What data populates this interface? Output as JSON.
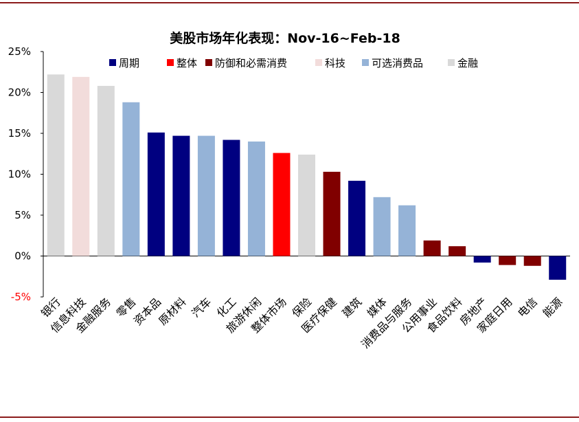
{
  "chart_data": {
    "type": "bar",
    "title": "美股市场年化表现：Nov-16~Feb-18",
    "ylim": [
      -5,
      25
    ],
    "yticks": [
      {
        "value": 25,
        "label": "25%"
      },
      {
        "value": 20,
        "label": "20%"
      },
      {
        "value": 15,
        "label": "15%"
      },
      {
        "value": 10,
        "label": "10%"
      },
      {
        "value": 5,
        "label": "5%"
      },
      {
        "value": 0,
        "label": "0%"
      },
      {
        "value": -5,
        "label": "-5%"
      }
    ],
    "legend_position": "top",
    "groups": [
      {
        "name": "周期",
        "color": "#000080"
      },
      {
        "name": "整体",
        "color": "#ff0000"
      },
      {
        "name": "防御和必需消费",
        "color": "#800000"
      },
      {
        "name": "科技",
        "color": "#f2dcdb"
      },
      {
        "name": "可选消费品",
        "color": "#95b3d7"
      },
      {
        "name": "金融",
        "color": "#d9d9d9"
      }
    ],
    "categories": [
      "银行",
      "信息科技",
      "金融服务",
      "零售",
      "资本品",
      "原材料",
      "汽车",
      "化工",
      "旅游休闲",
      "整体市场",
      "保险",
      "医疗保健",
      "建筑",
      "媒体",
      "消费品与服务",
      "公用事业",
      "食品饮料",
      "房地产",
      "家庭日用",
      "电信",
      "能源"
    ],
    "values": [
      22.2,
      21.9,
      20.8,
      18.8,
      15.1,
      14.7,
      14.7,
      14.2,
      14.0,
      12.6,
      12.4,
      10.3,
      9.2,
      7.2,
      6.2,
      1.9,
      1.2,
      -0.8,
      -1.1,
      -1.2,
      -2.9
    ],
    "bar_groups": [
      "金融",
      "科技",
      "金融",
      "可选消费品",
      "周期",
      "周期",
      "可选消费品",
      "周期",
      "可选消费品",
      "整体",
      "金融",
      "防御和必需消费",
      "周期",
      "可选消费品",
      "可选消费品",
      "防御和必需消费",
      "防御和必需消费",
      "周期",
      "防御和必需消费",
      "防御和必需消费",
      "周期"
    ]
  }
}
